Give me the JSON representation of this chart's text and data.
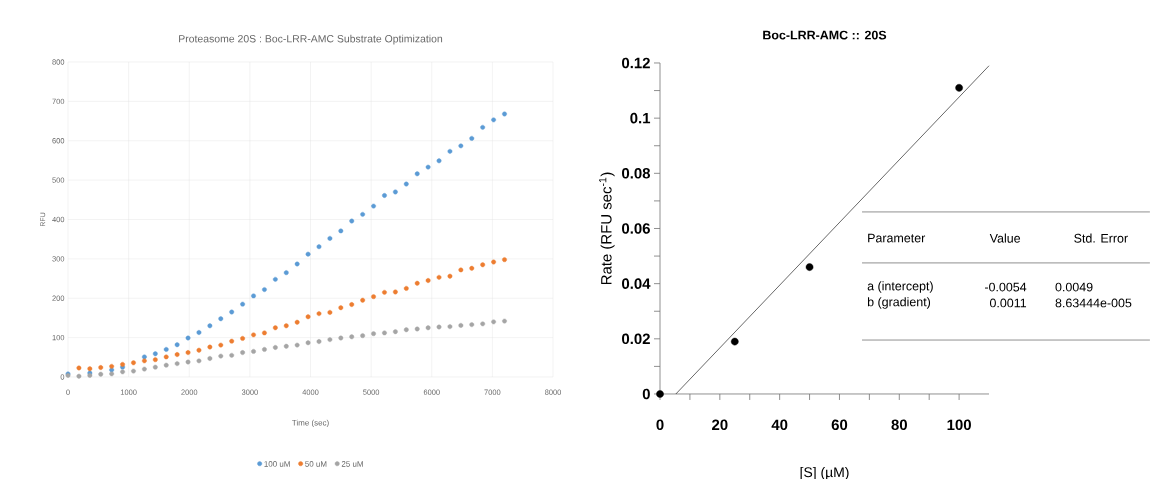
{
  "chart_data": [
    {
      "type": "scatter",
      "title": "Proteasome 20S : Boc-LRR-AMC Substrate Optimization",
      "xlabel": "Time (sec)",
      "ylabel": "RFU",
      "x": [
        0,
        180,
        360,
        540,
        720,
        900,
        1080,
        1260,
        1440,
        1620,
        1800,
        1980,
        2160,
        2340,
        2520,
        2700,
        2880,
        3060,
        3240,
        3420,
        3600,
        3780,
        3960,
        4140,
        4320,
        4500,
        4680,
        4860,
        5040,
        5220,
        5400,
        5580,
        5760,
        5940,
        6120,
        6300,
        6480,
        6660,
        6840,
        7020,
        7200
      ],
      "series": [
        {
          "name": "100 uM",
          "color": "#5b9bd5",
          "values": [
            8,
            null,
            10,
            null,
            18,
            25,
            null,
            51,
            59,
            70,
            82,
            99,
            113,
            130,
            148,
            165,
            185,
            206,
            222,
            248,
            265,
            287,
            312,
            331,
            352,
            371,
            396,
            413,
            434,
            461,
            470,
            490,
            516,
            533,
            549,
            573,
            587,
            606,
            634,
            653,
            668
          ]
        },
        {
          "name": "50 uM",
          "color": "#ed7d31",
          "values": [
            null,
            23,
            21,
            24,
            27,
            32,
            36,
            41,
            44,
            51,
            57,
            62,
            68,
            76,
            81,
            91,
            98,
            107,
            112,
            125,
            130,
            139,
            153,
            161,
            164,
            176,
            184,
            195,
            204,
            215,
            216,
            225,
            238,
            245,
            253,
            256,
            272,
            276,
            285,
            292,
            298
          ]
        },
        {
          "name": "25 uM",
          "color": "#a5a5a5",
          "values": [
            4,
            2,
            4,
            7,
            8,
            13,
            15,
            20,
            25,
            30,
            34,
            38,
            41,
            47,
            53,
            55,
            62,
            65,
            70,
            75,
            78,
            81,
            87,
            90,
            95,
            99,
            102,
            105,
            110,
            112,
            115,
            120,
            122,
            125,
            127,
            128,
            131,
            133,
            135,
            140,
            142
          ]
        }
      ],
      "xlim": [
        0,
        8000
      ],
      "ylim": [
        0,
        800
      ],
      "xticks": [
        0,
        1000,
        2000,
        3000,
        4000,
        5000,
        6000,
        7000,
        8000
      ],
      "yticks": [
        0,
        100,
        200,
        300,
        400,
        500,
        600,
        700,
        800
      ],
      "grid": true,
      "legend": "bottom",
      "marker": "circle"
    },
    {
      "type": "scatter",
      "title": "Boc-LRR-AMC :: 20S",
      "xlabel": "[S] (µM)",
      "ylabel": "Rate (RFU sec$^{-1}$)",
      "series": [
        {
          "color": "#000000",
          "x": [
            0,
            25,
            50,
            100
          ],
          "values": [
            0,
            0.019,
            0.046,
            0.111
          ]
        },
        {
          "type": "line",
          "marker": "none",
          "color": "#000000",
          "x": [
            5.3,
            110
          ],
          "values": [
            0,
            0.119
          ]
        }
      ],
      "xlim": [
        0,
        110
      ],
      "ylim": [
        0,
        0.12
      ],
      "xticks": [
        0,
        20,
        40,
        60,
        80,
        100
      ],
      "yticks": [
        0,
        0.02,
        0.04,
        0.06,
        0.08,
        0.1,
        0.12
      ],
      "marker": "circle",
      "annotations": [
        "Parameter",
        "Value",
        "Std. Error",
        "a (intercept)",
        "-0.0054",
        "0.0049",
        "b (gradient)",
        "0.0011",
        "8.63444e-005"
      ]
    }
  ]
}
